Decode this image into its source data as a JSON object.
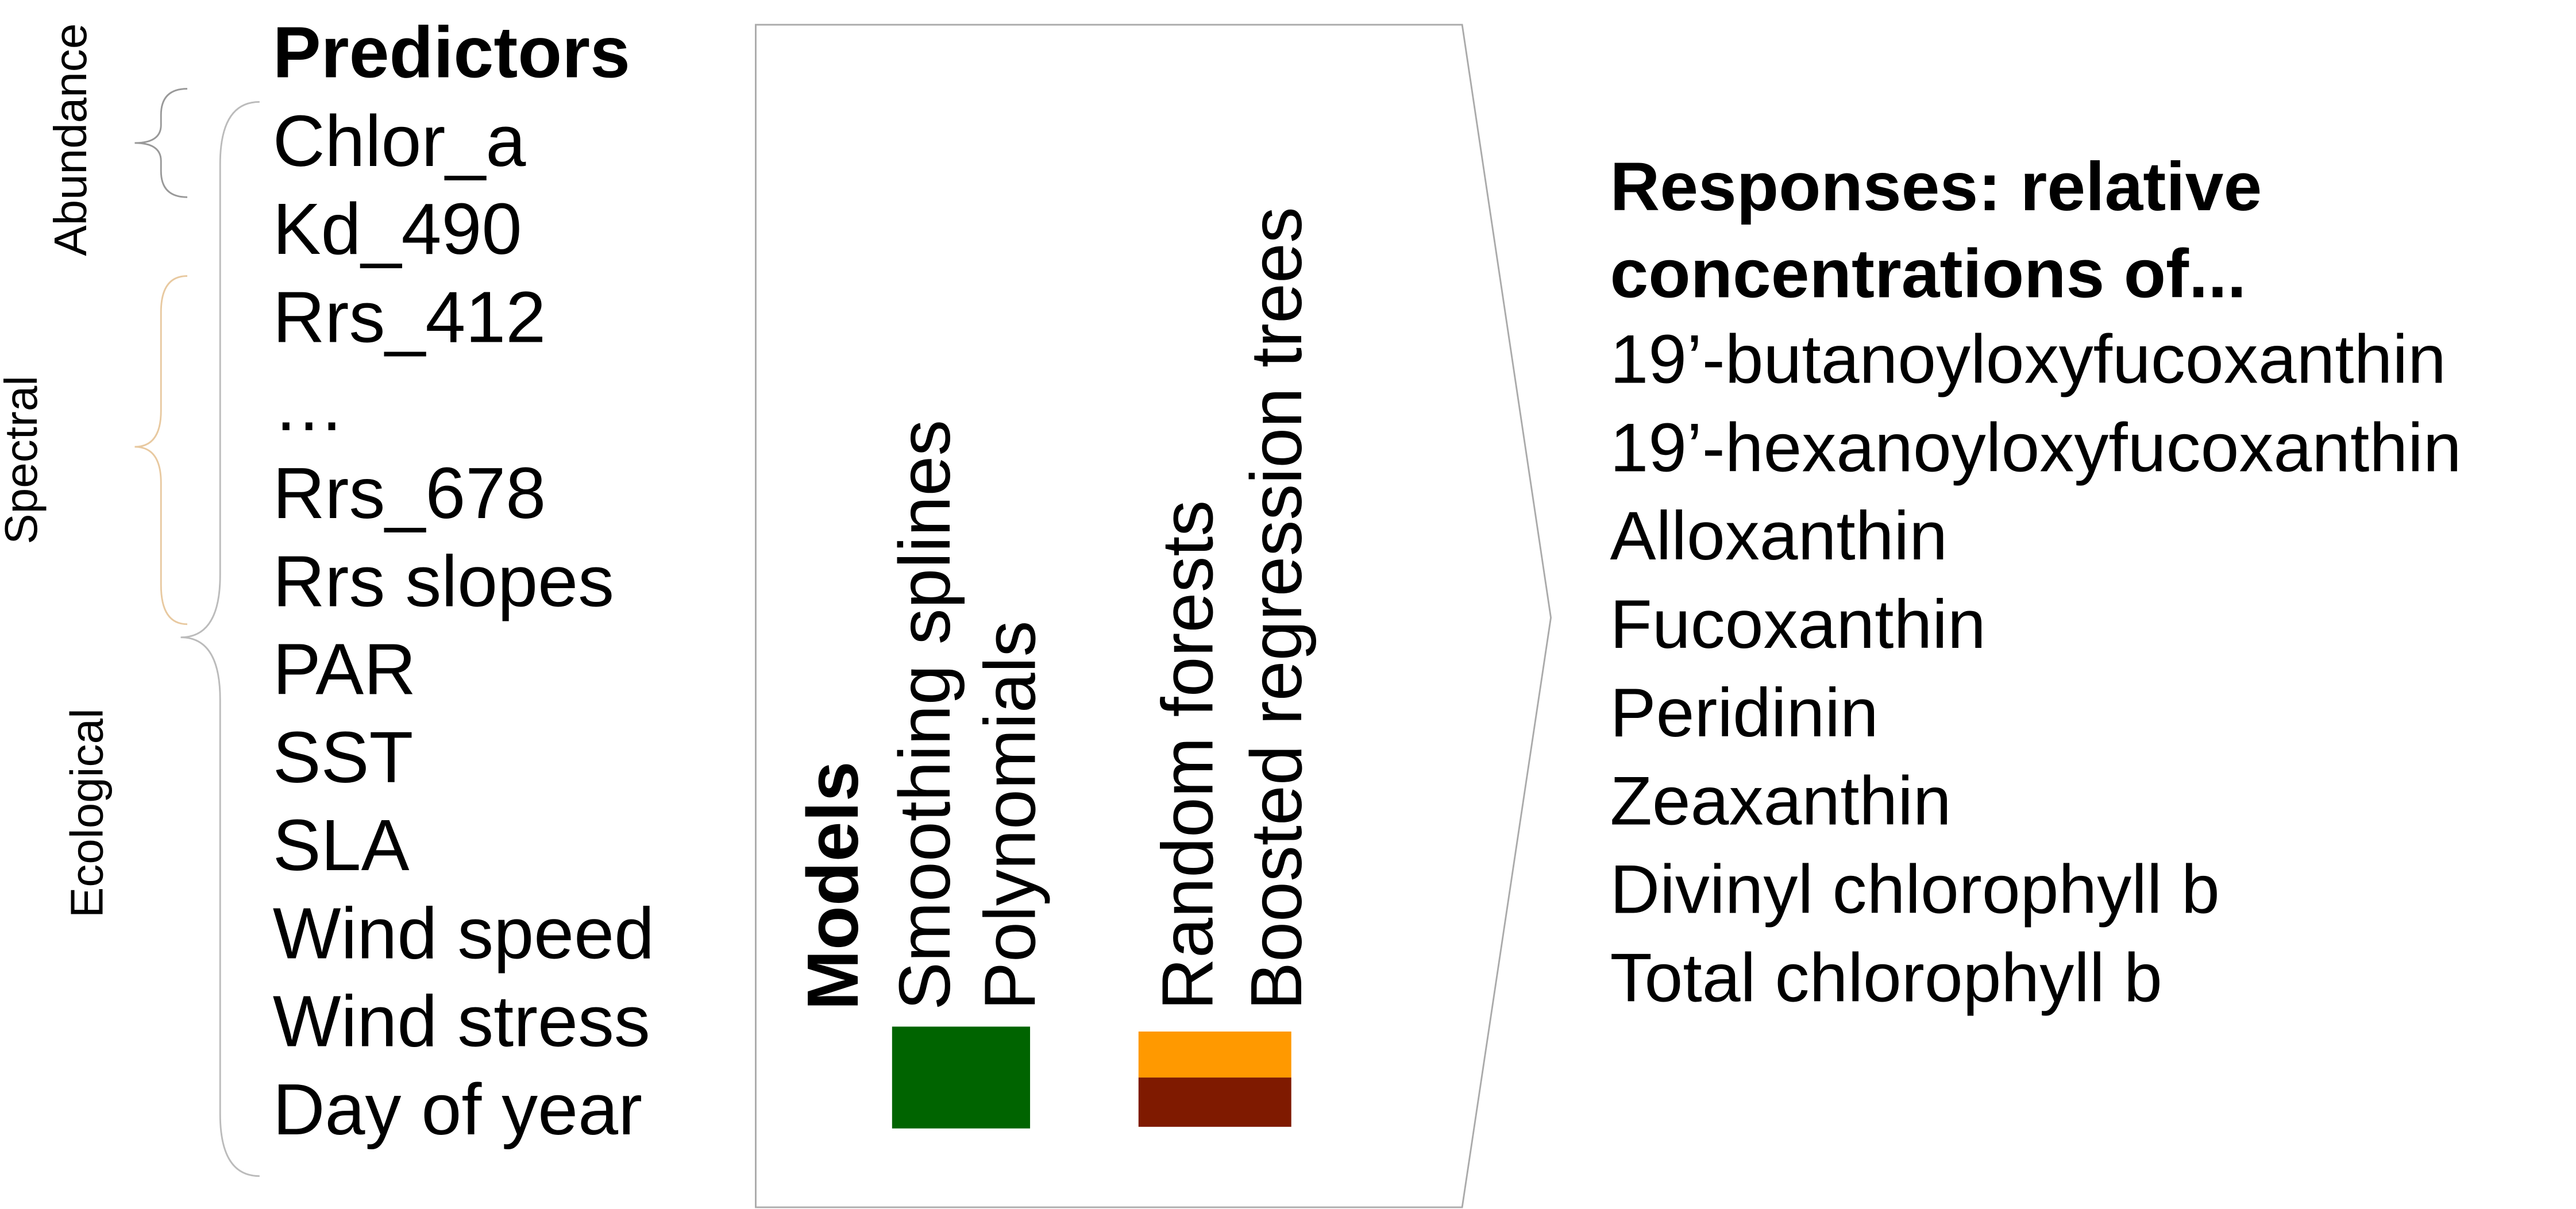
{
  "predictors": {
    "title": "Predictors",
    "items": [
      "Chlor_a",
      "Kd_490",
      "Rrs_412",
      "…",
      "Rrs_678",
      "Rrs slopes",
      "PAR",
      "SST",
      "SLA",
      "Wind speed",
      "Wind stress",
      "Day of year"
    ],
    "groups": [
      "Abundance",
      "Spectral",
      "Ecological"
    ]
  },
  "models": {
    "title": "Models",
    "items": [
      "Smoothing splines",
      "Polynomials",
      "Random forests",
      "Boosted regression trees"
    ]
  },
  "responses": {
    "title_lines": [
      "Responses: relative",
      "concentrations of..."
    ],
    "items": [
      "19’-butanoyloxyfucoxanthin",
      "19’-hexanoyloxyfucoxanthin",
      "Alloxanthin",
      "Fucoxanthin",
      "Peridinin",
      "Zeaxanthin",
      "Divinyl chlorophyll b",
      "Total chlorophyll b"
    ]
  }
}
